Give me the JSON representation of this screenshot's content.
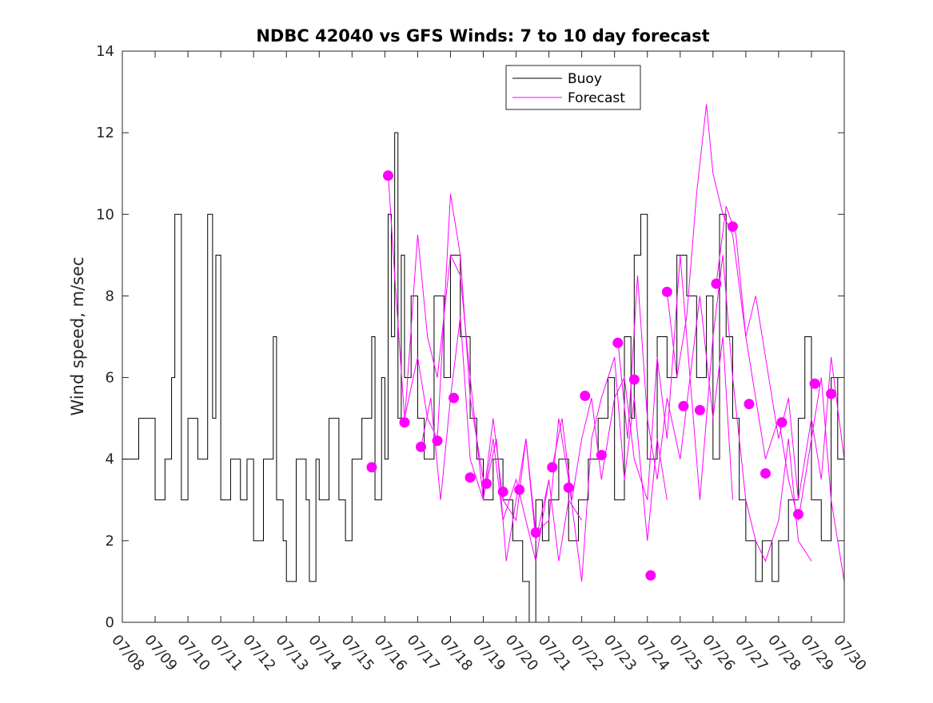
{
  "chart_data": {
    "type": "line",
    "title": "NDBC 42040 vs GFS Winds: 7 to 10 day forecast",
    "xlabel": "",
    "ylabel": "Wind speed, m/sec",
    "ylim": [
      0,
      14
    ],
    "yticks": [
      "0",
      "2",
      "4",
      "6",
      "8",
      "10",
      "12",
      "14"
    ],
    "xlim_days": [
      8.0,
      30.0
    ],
    "xtick_labels": [
      "07/08",
      "07/09",
      "07/10",
      "07/11",
      "07/12",
      "07/13",
      "07/14",
      "07/15",
      "07/16",
      "07/17",
      "07/18",
      "07/19",
      "07/20",
      "07/21",
      "07/22",
      "07/23",
      "07/24",
      "07/25",
      "07/26",
      "07/27",
      "07/28",
      "07/29",
      "07/30"
    ],
    "grid": false,
    "legend_position": "top-center",
    "colors": {
      "buoy": "#000000",
      "forecast": "#ff00ff",
      "axes": "#262626"
    },
    "series": [
      {
        "name": "Buoy",
        "style": "step",
        "x": [
          8.0,
          8.5,
          9.0,
          9.3,
          9.5,
          9.6,
          9.8,
          10.0,
          10.3,
          10.6,
          10.75,
          10.85,
          11.0,
          11.3,
          11.6,
          11.8,
          12.0,
          12.3,
          12.6,
          12.7,
          12.9,
          13.0,
          13.3,
          13.6,
          13.7,
          13.9,
          14.0,
          14.3,
          14.6,
          14.8,
          15.0,
          15.3,
          15.6,
          15.7,
          15.9,
          16.0,
          16.1,
          16.2,
          16.3,
          16.4,
          16.5,
          16.6,
          16.8,
          17.0,
          17.2,
          17.5,
          17.8,
          18.0,
          18.3,
          18.6,
          18.8,
          19.0,
          19.3,
          19.6,
          19.9,
          20.2,
          20.4,
          20.6,
          20.8,
          21.0,
          21.3,
          21.6,
          21.9,
          22.2,
          22.5,
          22.8,
          23.0,
          23.3,
          23.5,
          23.6,
          23.8,
          24.0,
          24.3,
          24.6,
          24.9,
          25.2,
          25.5,
          25.8,
          26.0,
          26.2,
          26.4,
          26.6,
          26.8,
          27.0,
          27.3,
          27.5,
          27.8,
          28.0,
          28.3,
          28.6,
          28.8,
          29.0,
          29.3,
          29.6,
          29.8,
          30.0
        ],
        "values": [
          4,
          5,
          3,
          4,
          6,
          10,
          3,
          5,
          4,
          10,
          5,
          9,
          3,
          4,
          3,
          4,
          2,
          4,
          7,
          3,
          2,
          1,
          4,
          3,
          1,
          4,
          3,
          5,
          3,
          2,
          4,
          5,
          7,
          3,
          6,
          4,
          10,
          7,
          12,
          5,
          9,
          6,
          8,
          5,
          4,
          8,
          6,
          9,
          7,
          5,
          4,
          3,
          4,
          3,
          2,
          1,
          0,
          3,
          2,
          3,
          4,
          2,
          3,
          4,
          5,
          6,
          3,
          7,
          5,
          9,
          10,
          4,
          7,
          6,
          9,
          8,
          6,
          8,
          4,
          10,
          7,
          5,
          3,
          2,
          1,
          2,
          1,
          2,
          3,
          5,
          7,
          3,
          2,
          6,
          4,
          4
        ]
      },
      {
        "name": "Forecast",
        "style": "line",
        "runs": [
          {
            "x": [
              16.1,
              16.3,
              16.6,
              17.0,
              17.3,
              17.6,
              18.0,
              18.3,
              18.6,
              19.0
            ],
            "values": [
              11.0,
              8.5,
              5.0,
              6.5,
              5.0,
              4.5,
              10.5,
              9.0,
              5.5,
              3.5
            ]
          },
          {
            "x": [
              16.6,
              17.0,
              17.3,
              17.6,
              18.0,
              18.3,
              18.6,
              19.0,
              19.3,
              19.6,
              20.0,
              20.3,
              20.6,
              21.0
            ],
            "values": [
              4.9,
              9.5,
              7.0,
              6.0,
              9.0,
              8.5,
              6.0,
              3.0,
              4.5,
              2.5,
              3.5,
              2.5,
              1.5,
              3.5
            ]
          },
          {
            "x": [
              17.1,
              17.4,
              17.7,
              18.0,
              18.3,
              18.6,
              19.0,
              19.3,
              19.6,
              20.0,
              20.3,
              20.6,
              21.0,
              21.3,
              21.6,
              22.0
            ],
            "values": [
              4.3,
              5.5,
              3.0,
              5.5,
              7.5,
              4.0,
              3.0,
              5.0,
              3.0,
              2.5,
              4.5,
              2.0,
              3.5,
              1.5,
              3.0,
              2.5
            ]
          },
          {
            "x": [
              19.1,
              19.4,
              19.7,
              20.0,
              20.3,
              20.6,
              21.0,
              21.3,
              21.6,
              22.0,
              22.3,
              22.6,
              23.0,
              23.3,
              23.6,
              24.0,
              24.3,
              24.6
            ],
            "values": [
              3.4,
              4.5,
              1.5,
              3.0,
              4.5,
              2.2,
              2.5,
              5.0,
              3.5,
              1.0,
              4.5,
              5.5,
              6.5,
              3.5,
              5.5,
              2.0,
              4.5,
              3.0
            ]
          },
          {
            "x": [
              21.1,
              21.4,
              21.7,
              22.0,
              22.3,
              22.6,
              23.0,
              23.3,
              23.6,
              24.0,
              24.3,
              24.6,
              25.0,
              25.3,
              25.6,
              26.0,
              26.3,
              26.6
            ],
            "values": [
              3.8,
              5.0,
              3.0,
              4.5,
              5.5,
              3.5,
              5.5,
              6.0,
              4.0,
              3.0,
              6.5,
              4.5,
              9.0,
              6.0,
              8.0,
              5.0,
              7.0,
              3.0
            ]
          },
          {
            "x": [
              23.1,
              23.4,
              23.7,
              24.0,
              24.3,
              24.6,
              25.0,
              25.3,
              25.6,
              26.0,
              26.3,
              26.6,
              27.0,
              27.3,
              27.6,
              28.0,
              28.3,
              28.6,
              29.0
            ],
            "values": [
              6.9,
              4.5,
              8.5,
              5.0,
              3.5,
              5.5,
              4.0,
              6.0,
              3.0,
              7.0,
              9.0,
              6.0,
              3.0,
              2.0,
              1.5,
              2.5,
              4.5,
              2.0,
              1.5
            ]
          },
          {
            "x": [
              24.6,
              24.9,
              25.2,
              25.5,
              25.8,
              26.0,
              26.3,
              26.6,
              27.0,
              27.3,
              27.6,
              28.0,
              28.3,
              28.6,
              29.0,
              29.3,
              29.6,
              30.0
            ],
            "values": [
              8.1,
              6.0,
              7.5,
              10.5,
              12.7,
              11.0,
              10.0,
              9.5,
              7.0,
              8.0,
              6.5,
              4.5,
              5.5,
              3.0,
              5.0,
              3.5,
              6.5,
              4.0
            ]
          },
          {
            "x": [
              26.1,
              26.4,
              26.7,
              27.0,
              27.3,
              27.6,
              28.0,
              28.3,
              28.6,
              29.0,
              29.3,
              29.6,
              30.0
            ],
            "values": [
              8.3,
              10.2,
              9.5,
              7.0,
              5.5,
              4.0,
              5.0,
              3.5,
              2.5,
              4.5,
              6.0,
              3.0,
              1.0
            ]
          }
        ],
        "markers": {
          "x": [
            15.6,
            16.1,
            16.6,
            17.1,
            17.6,
            18.1,
            18.6,
            19.1,
            19.6,
            20.1,
            20.6,
            21.1,
            21.6,
            22.1,
            22.6,
            23.1,
            23.6,
            24.1,
            24.6,
            25.1,
            25.6,
            26.1,
            26.6,
            27.1,
            27.6,
            28.1,
            28.6,
            29.1,
            29.6
          ],
          "values": [
            3.8,
            10.95,
            4.9,
            4.3,
            4.45,
            5.5,
            3.55,
            3.4,
            3.2,
            3.25,
            2.2,
            3.8,
            3.3,
            5.55,
            4.1,
            6.85,
            5.95,
            1.15,
            8.1,
            5.3,
            5.2,
            8.3,
            9.7,
            5.35,
            3.65,
            4.9,
            2.65,
            5.85,
            5.6
          ]
        }
      }
    ]
  }
}
